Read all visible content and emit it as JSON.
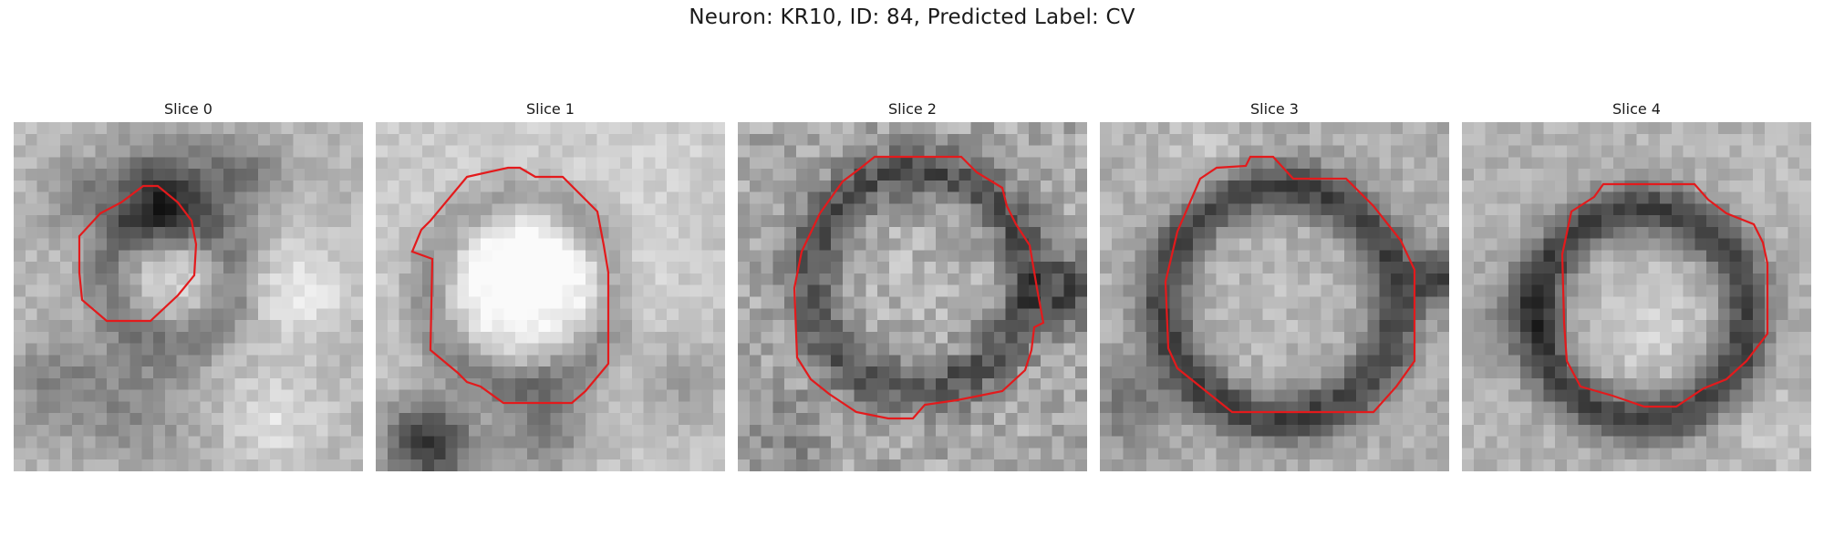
{
  "figure": {
    "title": "Neuron: KR10, ID: 84, Predicted Label: CV",
    "outline_color": "#e31a1c"
  },
  "slices": [
    {
      "title": "Slice 0"
    },
    {
      "title": "Slice 1"
    },
    {
      "title": "Slice 2"
    },
    {
      "title": "Slice 3"
    },
    {
      "title": "Slice 4"
    }
  ]
}
